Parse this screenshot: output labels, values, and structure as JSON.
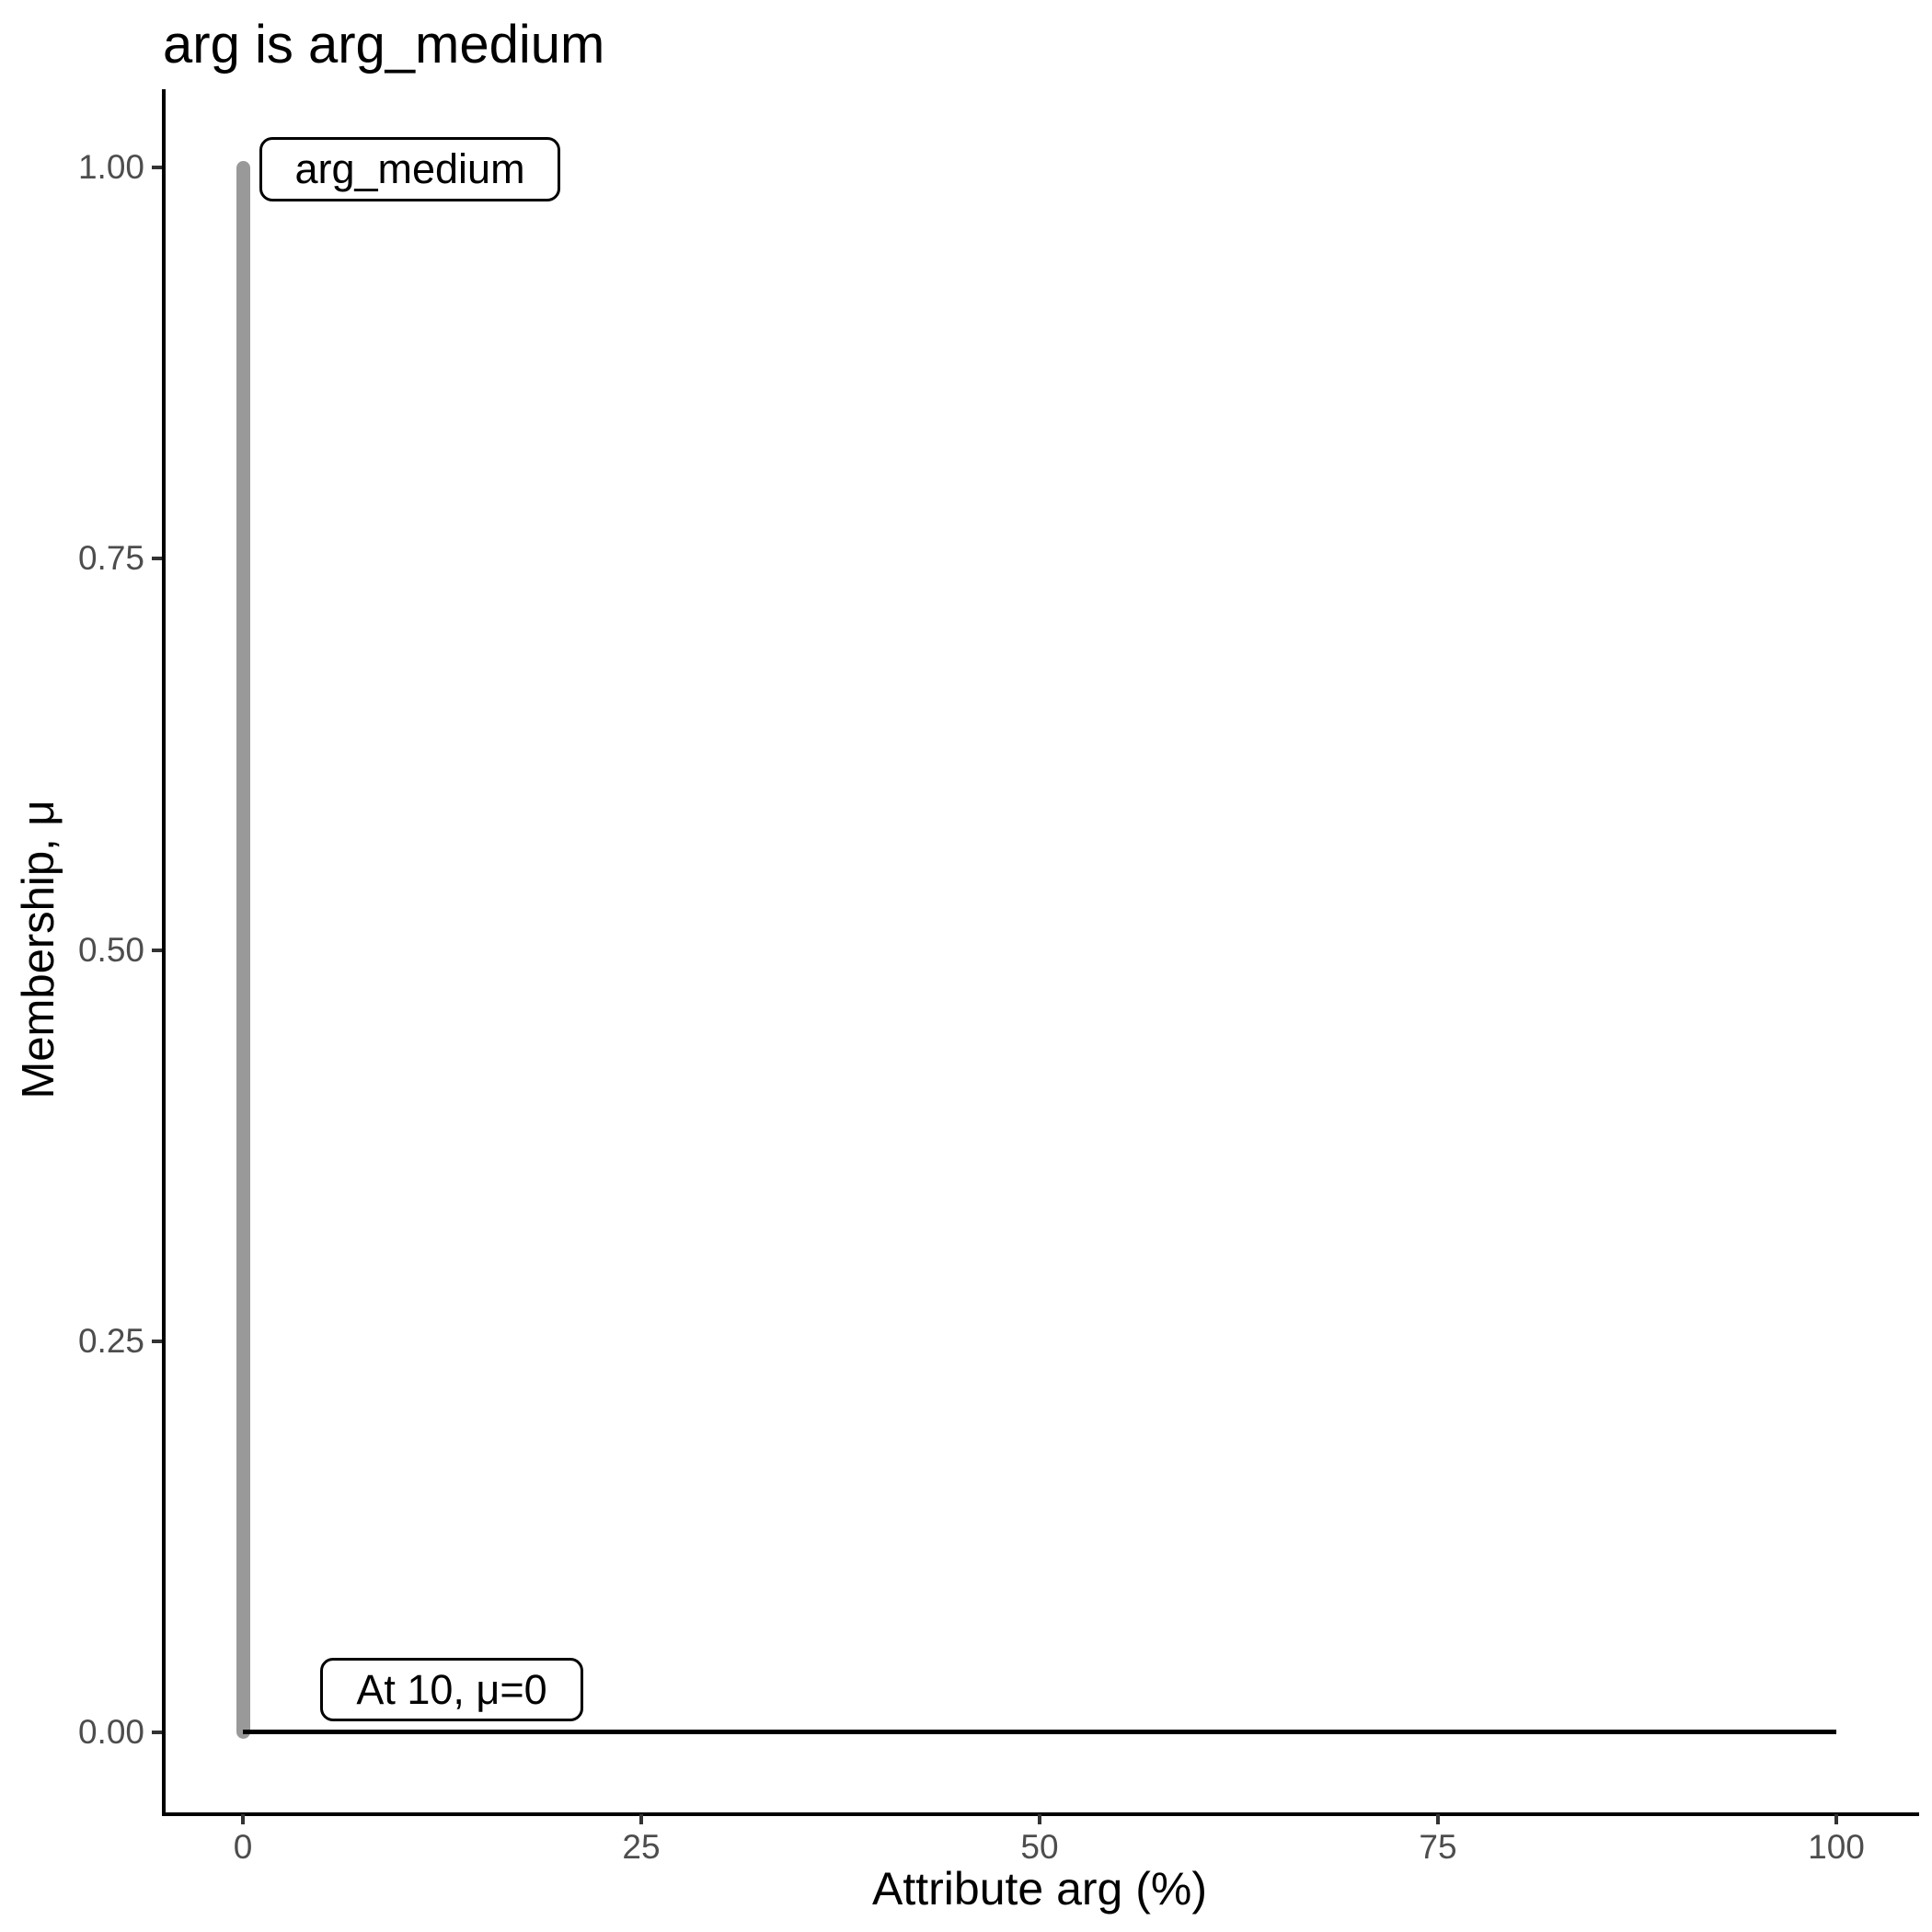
{
  "chart_data": {
    "type": "line",
    "title": "arg is arg_medium",
    "xlabel": "Attribute arg (%)",
    "ylabel": "Membership, μ",
    "x_ticks": [
      "0",
      "25",
      "50",
      "75",
      "100"
    ],
    "y_ticks": [
      "1.00",
      "0.75",
      "0.50",
      "0.25",
      "0.00"
    ],
    "xlim": [
      -5,
      105
    ],
    "ylim": [
      -0.05,
      1.05
    ],
    "grid": "off",
    "legend": "none",
    "series": [
      {
        "name": "arg_medium membership spike",
        "type": "vertical-segment",
        "color": "#999999",
        "x": 0,
        "y_from": 0,
        "y_to": 1
      },
      {
        "name": "zero membership baseline",
        "type": "line",
        "color": "#000000",
        "points": [
          [
            0,
            0
          ],
          [
            100,
            0
          ]
        ]
      }
    ],
    "annotations": [
      {
        "label": "arg_medium",
        "x": 0,
        "y": 1.0
      },
      {
        "label": "At 10, μ=0",
        "x": 10,
        "y": 0.03
      }
    ]
  },
  "colors": {
    "spike": "#999999",
    "baseline": "#000000",
    "axis_line": "#000000",
    "tick_mark": "#333333",
    "tick_text": "#4d4d4d",
    "label_border": "#000000",
    "label_bg": "#ffffff"
  }
}
